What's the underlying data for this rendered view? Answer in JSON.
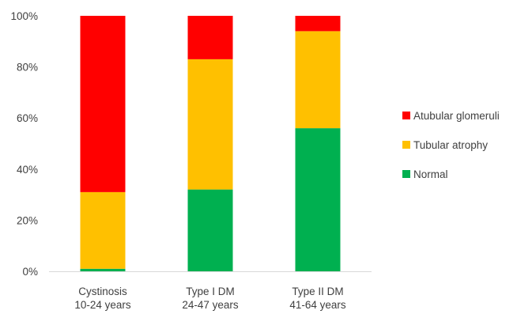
{
  "chart_data": {
    "type": "bar",
    "stacked": true,
    "stack_mode": "percent",
    "title": "",
    "xlabel": "",
    "ylabel": "",
    "ylim": [
      0,
      100
    ],
    "y_ticks": [
      "0%",
      "20%",
      "40%",
      "60%",
      "80%",
      "100%"
    ],
    "categories": [
      [
        "Cystinosis",
        "10-24 years"
      ],
      [
        "Type I DM",
        "24-47 years"
      ],
      [
        "Type II DM",
        "41-64 years"
      ]
    ],
    "series": [
      {
        "name": "Normal",
        "color": "#00b050",
        "values": [
          1,
          32,
          56
        ]
      },
      {
        "name": "Tubular atrophy",
        "color": "#ffc000",
        "values": [
          30,
          51,
          38
        ]
      },
      {
        "name": "Atubular glomeruli",
        "color": "#ff0000",
        "values": [
          69,
          17,
          6
        ]
      }
    ],
    "legend_order": [
      "Atubular glomeruli",
      "Tubular atrophy",
      "Normal"
    ],
    "legend_position": "right",
    "grid": false
  }
}
